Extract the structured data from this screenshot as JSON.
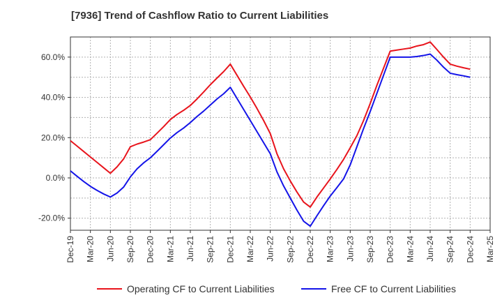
{
  "chart_data": {
    "type": "line",
    "title": "[7936]  Trend of Cashflow Ratio to Current Liabilities",
    "xlabel": "",
    "ylabel": "",
    "x_ticks": [
      "Dec-19",
      "Mar-20",
      "Jun-20",
      "Sep-20",
      "Dec-20",
      "Mar-21",
      "Jun-21",
      "Sep-21",
      "Dec-21",
      "Mar-22",
      "Jun-22",
      "Sep-22",
      "Dec-22",
      "Mar-23",
      "Jun-23",
      "Sep-23",
      "Dec-23",
      "Mar-24",
      "Jun-24",
      "Sep-24",
      "Dec-24",
      "Mar-25"
    ],
    "y_ticks": [
      -20,
      0,
      20,
      40,
      60
    ],
    "y_tick_labels": [
      "-20.0%",
      "0.0%",
      "20.0%",
      "40.0%",
      "60.0%"
    ],
    "ylim": [
      -26,
      70
    ],
    "grid": true,
    "legend_position": "bottom",
    "series": [
      {
        "name": "Operating CF to Current Liabilities",
        "color": "#e8141c",
        "x": [
          "Dec-19",
          "Jan-20",
          "Feb-20",
          "Mar-20",
          "Apr-20",
          "May-20",
          "Jun-20",
          "Jul-20",
          "Aug-20",
          "Sep-20",
          "Oct-20",
          "Nov-20",
          "Dec-20",
          "Jan-21",
          "Feb-21",
          "Mar-21",
          "Apr-21",
          "May-21",
          "Jun-21",
          "Jul-21",
          "Aug-21",
          "Sep-21",
          "Oct-21",
          "Nov-21",
          "Dec-21",
          "Jan-22",
          "Feb-22",
          "Mar-22",
          "Apr-22",
          "May-22",
          "Jun-22",
          "Jul-22",
          "Aug-22",
          "Sep-22",
          "Oct-22",
          "Nov-22",
          "Dec-22",
          "Jan-23",
          "Feb-23",
          "Mar-23",
          "Apr-23",
          "May-23",
          "Jun-23",
          "Jul-23",
          "Aug-23",
          "Sep-23",
          "Oct-23",
          "Nov-23",
          "Dec-23",
          "Jan-24",
          "Feb-24",
          "Mar-24",
          "Apr-24",
          "May-24",
          "Jun-24",
          "Jul-24",
          "Aug-24",
          "Sep-24",
          "Oct-24",
          "Nov-24",
          "Dec-24"
        ],
        "values": [
          18.5,
          15.8,
          13.1,
          10.4,
          7.7,
          5.0,
          2.3,
          5.5,
          9.5,
          15.5,
          16.8,
          17.8,
          19.0,
          22.2,
          25.5,
          29.0,
          31.5,
          33.6,
          36.0,
          39.2,
          42.7,
          46.3,
          49.6,
          52.8,
          56.5,
          51.0,
          45.5,
          40.2,
          34.5,
          28.5,
          22.0,
          12.0,
          4.5,
          -1.5,
          -7.0,
          -12.0,
          -14.5,
          -9.5,
          -5.0,
          -0.5,
          4.2,
          9.2,
          15.0,
          21.0,
          28.5,
          37.0,
          46.0,
          54.5,
          63.0,
          63.5,
          64.0,
          64.5,
          65.5,
          66.2,
          67.5,
          63.8,
          60.0,
          56.5,
          55.5,
          54.7,
          54.0
        ]
      },
      {
        "name": "Free CF to Current Liabilities",
        "color": "#1414e8",
        "x": [
          "Dec-19",
          "Jan-20",
          "Feb-20",
          "Mar-20",
          "Apr-20",
          "May-20",
          "Jun-20",
          "Jul-20",
          "Aug-20",
          "Sep-20",
          "Oct-20",
          "Nov-20",
          "Dec-20",
          "Jan-21",
          "Feb-21",
          "Mar-21",
          "Apr-21",
          "May-21",
          "Jun-21",
          "Jul-21",
          "Aug-21",
          "Sep-21",
          "Oct-21",
          "Nov-21",
          "Dec-21",
          "Jan-22",
          "Feb-22",
          "Mar-22",
          "Apr-22",
          "May-22",
          "Jun-22",
          "Jul-22",
          "Aug-22",
          "Sep-22",
          "Oct-22",
          "Nov-22",
          "Dec-22",
          "Jan-23",
          "Feb-23",
          "Mar-23",
          "Apr-23",
          "May-23",
          "Jun-23",
          "Jul-23",
          "Aug-23",
          "Sep-23",
          "Oct-23",
          "Nov-23",
          "Dec-23",
          "Jan-24",
          "Feb-24",
          "Mar-24",
          "Apr-24",
          "May-24",
          "Jun-24",
          "Jul-24",
          "Aug-24",
          "Sep-24",
          "Oct-24",
          "Nov-24",
          "Dec-24"
        ],
        "values": [
          3.5,
          0.8,
          -1.8,
          -4.2,
          -6.2,
          -8.0,
          -9.5,
          -7.5,
          -4.5,
          0.5,
          4.5,
          7.5,
          10.0,
          13.2,
          16.5,
          19.8,
          22.5,
          24.8,
          27.5,
          30.5,
          33.2,
          36.2,
          39.2,
          41.8,
          45.0,
          39.5,
          34.0,
          28.5,
          23.0,
          17.5,
          12.0,
          3.0,
          -4.0,
          -10.0,
          -16.0,
          -21.5,
          -24.0,
          -18.8,
          -13.8,
          -9.0,
          -4.8,
          -0.5,
          6.5,
          15.5,
          24.5,
          33.0,
          42.0,
          51.0,
          60.0,
          60.0,
          60.0,
          60.0,
          60.3,
          60.8,
          61.5,
          58.5,
          55.0,
          52.0,
          51.3,
          50.7,
          50.0
        ]
      }
    ]
  }
}
